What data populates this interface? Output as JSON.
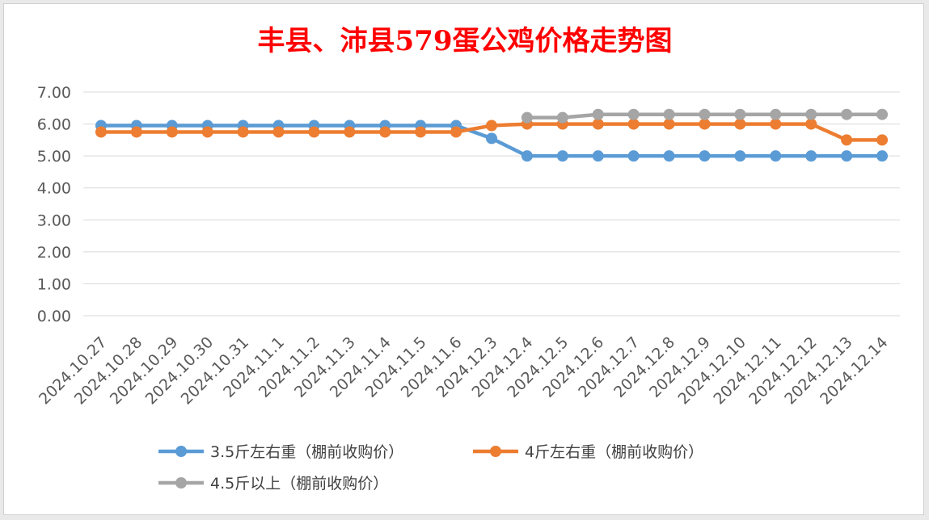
{
  "chart_data": {
    "type": "line",
    "title": "丰县、沛县579蛋公鸡价格走势图",
    "xlabel": "",
    "ylabel": "",
    "ylim": [
      0,
      7
    ],
    "yticks": [
      "0.00",
      "1.00",
      "2.00",
      "3.00",
      "4.00",
      "5.00",
      "6.00",
      "7.00"
    ],
    "grid": "horizontal",
    "legend_position": "bottom",
    "categories": [
      "2024.10.27",
      "2024.10.28",
      "2024.10.29",
      "2024.10.30",
      "2024.10.31",
      "2024.11.1",
      "2024.11.2",
      "2024.11.3",
      "2024.11.4",
      "2024.11.5",
      "2024.11.6",
      "2024.12.3",
      "2024.12.4",
      "2024.12.5",
      "2024.12.6",
      "2024.12.7",
      "2024.12.8",
      "2024.12.9",
      "2024.12.10",
      "2024.12.11",
      "2024.12.12",
      "2024.12.13",
      "2024.12.14"
    ],
    "series": [
      {
        "name": "3.5斤左右重（棚前收购价）",
        "color": "#5b9bd5",
        "values": [
          5.95,
          5.95,
          5.95,
          5.95,
          5.95,
          5.95,
          5.95,
          5.95,
          5.95,
          5.95,
          5.95,
          5.55,
          5.0,
          5.0,
          5.0,
          5.0,
          5.0,
          5.0,
          5.0,
          5.0,
          5.0,
          5.0,
          5.0
        ]
      },
      {
        "name": "4斤左右重（棚前收购价）",
        "color": "#ed7d31",
        "values": [
          5.75,
          5.75,
          5.75,
          5.75,
          5.75,
          5.75,
          5.75,
          5.75,
          5.75,
          5.75,
          5.75,
          5.95,
          6.0,
          6.0,
          6.0,
          6.0,
          6.0,
          6.0,
          6.0,
          6.0,
          6.0,
          5.5,
          5.5
        ]
      },
      {
        "name": "4.5斤以上（棚前收购价）",
        "color": "#a5a5a5",
        "values": [
          null,
          null,
          null,
          null,
          null,
          null,
          null,
          null,
          null,
          null,
          null,
          null,
          6.2,
          6.2,
          6.3,
          6.3,
          6.3,
          6.3,
          6.3,
          6.3,
          6.3,
          6.3,
          6.3
        ]
      }
    ]
  }
}
